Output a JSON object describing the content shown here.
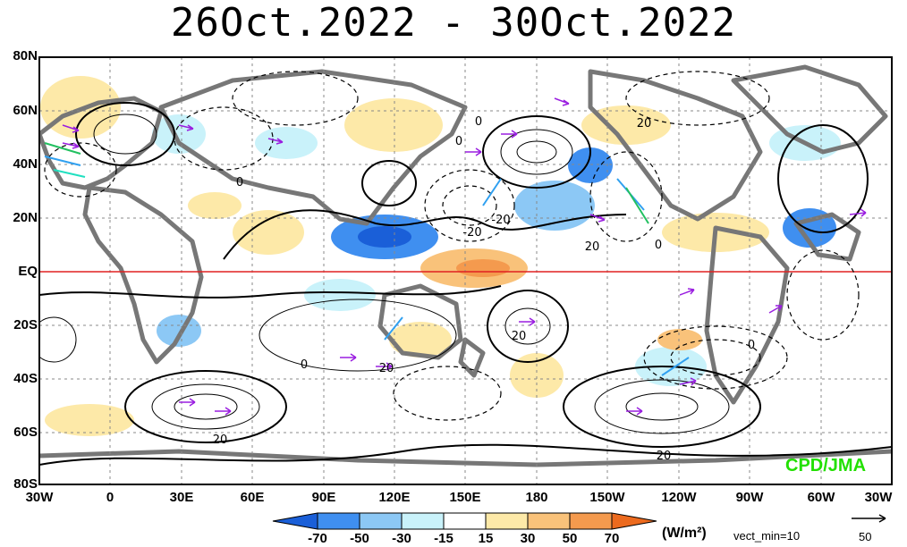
{
  "title": "26Oct.2022 - 30Oct.2022",
  "lat_labels": [
    "80N",
    "60N",
    "40N",
    "20N",
    "EQ",
    "20S",
    "40S",
    "60S",
    "80S"
  ],
  "lon_labels": [
    "30W",
    "0",
    "30E",
    "60E",
    "90E",
    "120E",
    "150E",
    "180",
    "150W",
    "120W",
    "90W",
    "60W",
    "30W"
  ],
  "colorbar": {
    "ticks": [
      "-70",
      "-50",
      "-30",
      "-15",
      "15",
      "30",
      "50",
      "70"
    ],
    "colors": [
      "#1a5fd8",
      "#3f8ff0",
      "#8cc8f5",
      "#c9f2fa",
      "#ffffff",
      "#fde9a8",
      "#f9c27a",
      "#f49a4e",
      "#ec6a1e"
    ],
    "unit": "(W/m²)",
    "vect_min": "vect_min=10"
  },
  "reference_vector": {
    "value": "50"
  },
  "contour_labels": [
    "0",
    "0",
    "0",
    "-20",
    "20",
    "0",
    "20",
    "0",
    "20",
    "20",
    "20",
    "0",
    "-20",
    "20"
  ],
  "credit": "CPD/JMA",
  "colors": {
    "equator_line": "#e02020",
    "land": "#777777",
    "vectors": "#9a1ee0"
  }
}
